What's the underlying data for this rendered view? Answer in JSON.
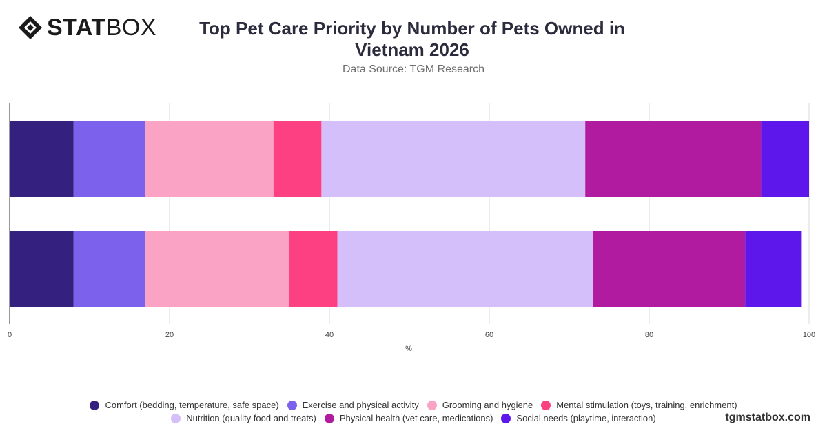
{
  "brand": {
    "logo_bold": "STAT",
    "logo_light": "BOX",
    "watermark": "tgmstatbox.com"
  },
  "colors": {
    "series": [
      "#33207f",
      "#7b61ec",
      "#fba3c4",
      "#fd4081",
      "#d5bffa",
      "#b11b9f",
      "#5e17eb"
    ],
    "grid": "#d9d9d9",
    "axis": "#333333"
  },
  "chart_data": {
    "type": "bar",
    "orientation": "horizontal",
    "stacked": true,
    "title": "Top Pet Care Priority by Number of Pets Owned in Vietnam 2026",
    "subtitle": "Data Source: TGM Research",
    "xlabel": "%",
    "ylabel": "",
    "xlim": [
      0,
      100
    ],
    "xticks": [
      "0",
      "20",
      "40",
      "60",
      "80",
      "100"
    ],
    "categories": [
      "",
      ""
    ],
    "grid": true,
    "legend_position": "bottom",
    "series": [
      {
        "name": "Comfort (bedding, temperature, safe space)",
        "values": [
          8,
          8
        ]
      },
      {
        "name": "Exercise and physical activity",
        "values": [
          9,
          9
        ]
      },
      {
        "name": "Grooming and hygiene",
        "values": [
          16,
          18
        ]
      },
      {
        "name": "Mental stimulation (toys, training, enrichment)",
        "values": [
          6,
          6
        ]
      },
      {
        "name": "Nutrition (quality food and treats)",
        "values": [
          33,
          32
        ]
      },
      {
        "name": "Physical health (vet care, medications)",
        "values": [
          22,
          19
        ]
      },
      {
        "name": "Social needs (playtime, interaction)",
        "values": [
          6,
          7
        ]
      }
    ]
  }
}
